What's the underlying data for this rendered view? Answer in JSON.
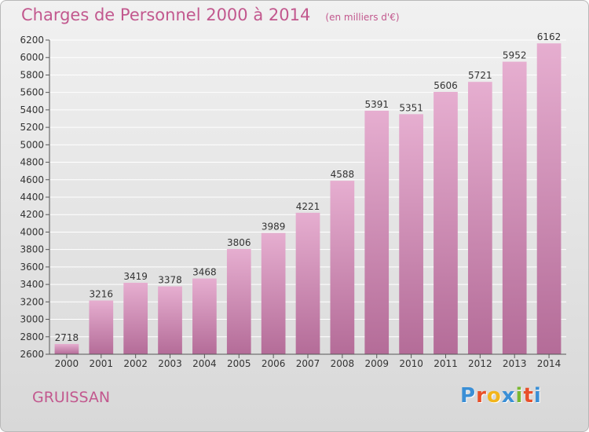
{
  "chart_data": {
    "type": "bar",
    "title": "Charges de Personnel 2000 à 2014",
    "unit_note": "(en milliers d'€)",
    "categories": [
      "2000",
      "2001",
      "2002",
      "2003",
      "2004",
      "2005",
      "2006",
      "2007",
      "2008",
      "2009",
      "2010",
      "2011",
      "2012",
      "2013",
      "2014"
    ],
    "values": [
      2718,
      3216,
      3419,
      3378,
      3468,
      3806,
      3989,
      4221,
      4588,
      5391,
      5351,
      5606,
      5721,
      5952,
      6162
    ],
    "ylim": [
      2600,
      6200
    ],
    "yticks": [
      2600,
      2800,
      3000,
      3200,
      3400,
      3600,
      3800,
      4000,
      4200,
      4400,
      4600,
      4800,
      5000,
      5200,
      5400,
      5600,
      5800,
      6000,
      6200
    ],
    "xlabel": "",
    "ylabel": "",
    "grid": true,
    "bar_color_top": "#e6aed0",
    "bar_color_bottom": "#b46c98"
  },
  "footer": {
    "city": "GRUISSAN",
    "logo_letters": [
      "P",
      "r",
      "o",
      "x",
      "i",
      "t",
      "i"
    ],
    "logo_colors": [
      "#3a8fd6",
      "#e8502a",
      "#f2b51c",
      "#3a8fd6",
      "#7ab832",
      "#e8502a",
      "#3a8fd6"
    ]
  }
}
